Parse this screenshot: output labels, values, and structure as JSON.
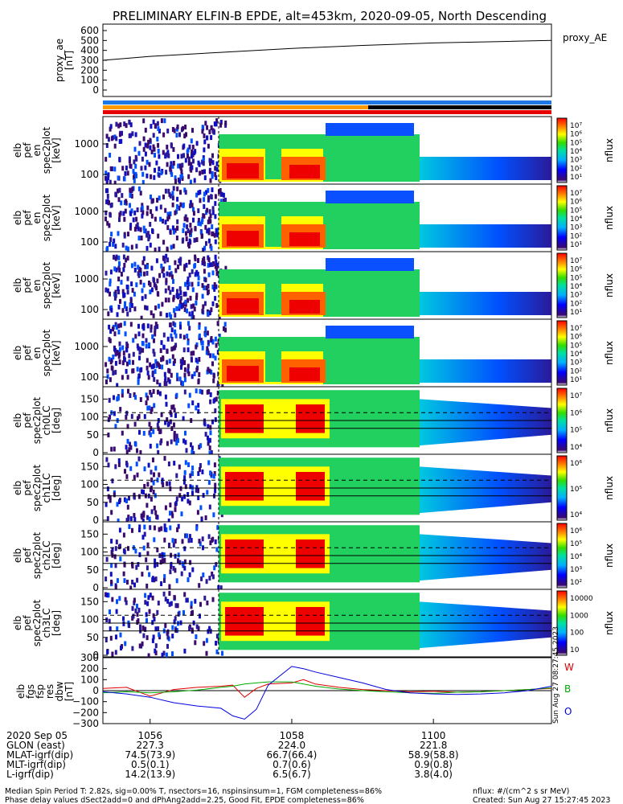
{
  "title": "PRELIMINARY ELFIN-B EPDE, alt=453km, 2020-09-05, North Descending",
  "proxy_panel": {
    "ylabel": [
      "proxy_ae",
      "[nT]"
    ],
    "yticks": [
      "600",
      "500",
      "400",
      "300",
      "200",
      "100",
      "0"
    ],
    "legend": "proxy_AE"
  },
  "spec_panels": [
    {
      "ylabel": [
        "elb",
        "pef",
        "en",
        "spec2plot",
        "[keV]"
      ],
      "type": "energy",
      "yticks": [
        "1000",
        "100"
      ],
      "cb_ticks": [
        "10⁷",
        "10⁶",
        "10⁵",
        "10⁴",
        "10³",
        "10²",
        "10¹"
      ],
      "cb_label": "nflux"
    },
    {
      "ylabel": [
        "elb",
        "pef",
        "en",
        "spec2plot",
        "[keV]"
      ],
      "type": "energy",
      "yticks": [
        "1000",
        "100"
      ],
      "cb_ticks": [
        "10⁷",
        "10⁶",
        "10⁵",
        "10⁴",
        "10³",
        "10²",
        "10¹"
      ],
      "cb_label": "nflux"
    },
    {
      "ylabel": [
        "elb",
        "pef",
        "en",
        "spec2plot",
        "[keV]"
      ],
      "type": "energy",
      "yticks": [
        "1000",
        "100"
      ],
      "cb_ticks": [
        "10⁷",
        "10⁶",
        "10⁵",
        "10⁴",
        "10³",
        "10²",
        "10¹"
      ],
      "cb_label": "nflux"
    },
    {
      "ylabel": [
        "elb",
        "pef",
        "en",
        "spec2plot",
        "[keV]"
      ],
      "type": "energy",
      "yticks": [
        "1000",
        "100"
      ],
      "cb_ticks": [
        "10⁷",
        "10⁶",
        "10⁵",
        "10⁴",
        "10³",
        "10²",
        "10¹"
      ],
      "cb_label": "nflux"
    },
    {
      "ylabel": [
        "elb",
        "pef",
        "spec2plot",
        "ch0LC",
        "[deg]"
      ],
      "type": "pitch",
      "yticks": [
        "150",
        "100",
        "50",
        "0"
      ],
      "cb_ticks": [
        "10⁷",
        "10⁶",
        "10⁵",
        "10⁴"
      ],
      "cb_label": "nflux"
    },
    {
      "ylabel": [
        "elb",
        "pef",
        "spec2plot",
        "ch1LC",
        "[deg]"
      ],
      "type": "pitch",
      "yticks": [
        "150",
        "100",
        "50",
        "0"
      ],
      "cb_ticks": [
        "10⁶",
        "10⁵",
        "10⁴"
      ],
      "cb_label": "nflux"
    },
    {
      "ylabel": [
        "elb",
        "pef",
        "spec2plot",
        "ch2LC",
        "[deg]"
      ],
      "type": "pitch",
      "yticks": [
        "150",
        "100",
        "50",
        "0"
      ],
      "cb_ticks": [
        "10⁶",
        "10⁵",
        "10⁴",
        "10³",
        "10²"
      ],
      "cb_label": "nflux"
    },
    {
      "ylabel": [
        "elb",
        "pef",
        "spec2plot",
        "ch3LC",
        "[deg]"
      ],
      "type": "pitch",
      "yticks": [
        "150",
        "100",
        "50",
        "0"
      ],
      "cb_ticks": [
        "10000",
        "1000",
        "100",
        "10"
      ],
      "cb_label": "nflux"
    }
  ],
  "field_panel": {
    "ylabel": [
      "elb",
      "fgs",
      "fsp",
      "res",
      "dbw",
      "[nT]"
    ],
    "yticks": [
      "300",
      "200",
      "100",
      "0",
      "−100",
      "−200",
      "−300"
    ],
    "legend": [
      "W",
      "B",
      "O"
    ],
    "stamp": "Sun Aug 27 08:27:45 2023"
  },
  "orbit_table": {
    "rows": [
      {
        "label": "2020 Sep 05",
        "values": [
          "1056",
          "1058",
          "1100"
        ]
      },
      {
        "label": "GLON (east)",
        "values": [
          "227.3",
          "224.0",
          "221.8"
        ]
      },
      {
        "label": "MLAT-igrf(dip)",
        "values": [
          "74.5(73.9)",
          "66.7(66.4)",
          "58.9(58.8)"
        ]
      },
      {
        "label": "MLT-igrf(dip)",
        "values": [
          "0.5(0.1)",
          "0.7(0.6)",
          "0.9(0.8)"
        ]
      },
      {
        "label": "L-igrf(dip)",
        "values": [
          "14.2(13.9)",
          "6.5(6.7)",
          "3.8(4.0)"
        ]
      }
    ]
  },
  "footer": {
    "line1_left": "Median Spin Period T: 2.82s, sig=0.00% T, nsectors=16, nspinsinsum=1, FGM completeness=86%",
    "line2_left": "Phase delay values dSect2add=0 and dPhAng2add=2.25, Good Fit, EPDE completeness=86%",
    "line1_right": "nflux: #/(cm^2 s sr MeV)",
    "line2_right": "Created: Sun Aug 27 15:27:45 2023"
  },
  "chart_data": {
    "type": "line",
    "time_ticks": [
      "1056",
      "1058",
      "1100"
    ],
    "proxy_ae": {
      "x": [
        "10:55:20",
        "10:56:00",
        "10:57:00",
        "10:58:00",
        "10:59:00",
        "11:00:00",
        "11:01:00",
        "11:01:40"
      ],
      "values": [
        300,
        340,
        380,
        420,
        450,
        475,
        490,
        500
      ],
      "ylim": [
        0,
        600
      ]
    },
    "field_residuals": {
      "x": [
        "10:55:20",
        "10:55:40",
        "10:56:00",
        "10:56:20",
        "10:56:40",
        "10:57:00",
        "10:57:10",
        "10:57:20",
        "10:57:30",
        "10:57:40",
        "10:58:00",
        "10:58:10",
        "10:58:20",
        "10:58:40",
        "10:59:00",
        "10:59:20",
        "10:59:40",
        "11:00:00",
        "11:00:20",
        "11:00:40",
        "11:01:00",
        "11:01:20",
        "11:01:40"
      ],
      "ylim": [
        -300,
        300
      ],
      "series": [
        {
          "name": "W",
          "color": "#dd0000",
          "values": [
            20,
            30,
            -50,
            10,
            30,
            40,
            50,
            -60,
            20,
            60,
            70,
            100,
            60,
            30,
            10,
            0,
            -10,
            -5,
            -15,
            -10,
            0,
            10,
            20
          ]
        },
        {
          "name": "B",
          "color": "#00aa00",
          "values": [
            -20,
            -10,
            -20,
            -10,
            5,
            30,
            40,
            60,
            70,
            80,
            80,
            60,
            40,
            15,
            0,
            -10,
            -20,
            -25,
            -15,
            -10,
            0,
            10,
            25
          ]
        },
        {
          "name": "O",
          "color": "#0000dd",
          "values": [
            -10,
            -30,
            -60,
            -110,
            -140,
            -160,
            -230,
            -260,
            -170,
            50,
            220,
            200,
            170,
            120,
            70,
            10,
            -20,
            -30,
            -35,
            -30,
            -20,
            0,
            40
          ]
        }
      ]
    }
  }
}
